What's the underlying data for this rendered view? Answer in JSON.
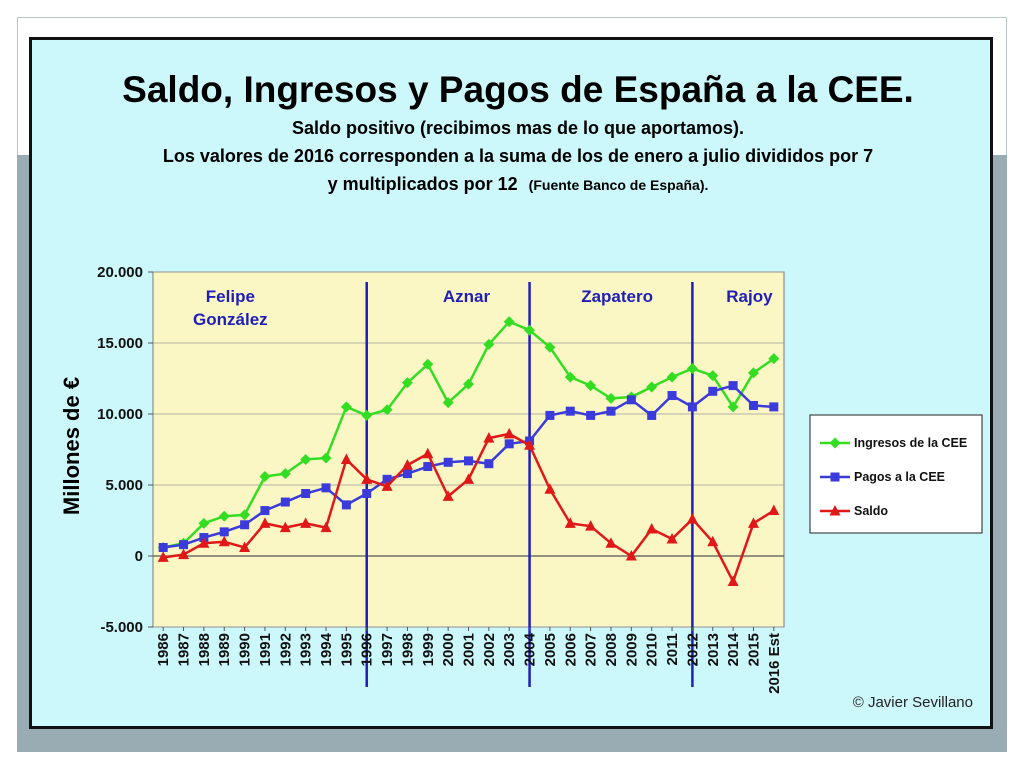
{
  "chart_data": {
    "type": "line",
    "title": "Saldo, Ingresos  y Pagos de España a la CEE.",
    "subtitle_lines": [
      "Saldo positivo (recibimos mas de lo que aportamos).",
      "Los valores de 2016 corresponden a la suma de los de enero a julio divididos por 7"
    ],
    "subtitle_line3_main": "y multiplicados por 12",
    "subtitle_line3_small": "(Fuente Banco de España).",
    "ylabel": "Millones de €",
    "xlabel": "",
    "ylim": [
      -5000,
      20000
    ],
    "yticks": [
      -5000,
      0,
      5000,
      10000,
      15000,
      20000
    ],
    "ytick_labels": [
      "-5.000",
      "0",
      "5.000",
      "10.000",
      "15.000",
      "20.000"
    ],
    "grid": "horizontal",
    "legend_position": "right",
    "categories": [
      "1986",
      "1987",
      "1988",
      "1989",
      "1990",
      "1991",
      "1992",
      "1993",
      "1994",
      "1995",
      "1996",
      "1997",
      "1998",
      "1999",
      "2000",
      "2001",
      "2002",
      "2003",
      "2004",
      "2005",
      "2006",
      "2007",
      "2008",
      "2009",
      "2010",
      "2011",
      "2012",
      "2013",
      "2014",
      "2015",
      "2016 Est"
    ],
    "series": [
      {
        "name": "Ingresos de la CEE",
        "color": "#33dd22",
        "marker": "diamond",
        "values": [
          600,
          900,
          2300,
          2800,
          2900,
          5600,
          5800,
          6800,
          6900,
          10500,
          9900,
          10300,
          12200,
          13500,
          10800,
          12100,
          14900,
          16500,
          15900,
          14700,
          12600,
          12000,
          11100,
          11200,
          11900,
          12600,
          13200,
          12700,
          10500,
          12900,
          13900
        ]
      },
      {
        "name": "Pagos a la CEE",
        "color": "#3b3bdb",
        "marker": "square",
        "values": [
          600,
          800,
          1300,
          1700,
          2200,
          3200,
          3800,
          4400,
          4800,
          3600,
          4400,
          5400,
          5800,
          6300,
          6600,
          6700,
          6500,
          7900,
          8100,
          9900,
          10200,
          9900,
          10200,
          11000,
          9900,
          11300,
          10500,
          11600,
          12000,
          10600,
          10500
        ]
      },
      {
        "name": "Saldo",
        "color": "#e01818",
        "marker": "triangle",
        "values": [
          -100,
          100,
          900,
          1000,
          600,
          2300,
          2000,
          2300,
          2000,
          6800,
          5400,
          4900,
          6400,
          7200,
          4200,
          5400,
          8300,
          8600,
          7800,
          4700,
          2300,
          2100,
          900,
          0,
          1900,
          1200,
          2600,
          1000,
          -1800,
          2300,
          3200
        ]
      }
    ],
    "period_dividers": [
      {
        "x": 10,
        "label": "1996"
      },
      {
        "x": 18,
        "label": "2004"
      },
      {
        "x": 26,
        "label": "2012"
      }
    ],
    "period_labels": [
      {
        "lines": [
          "Felipe",
          "González"
        ],
        "category": 3.3
      },
      {
        "lines": [
          "Aznar"
        ],
        "category": 14.9
      },
      {
        "lines": [
          "Zapatero"
        ],
        "category": 22.3
      },
      {
        "lines": [
          "Rajoy"
        ],
        "category": 28.8
      }
    ],
    "divider_color": "#1f1fb8",
    "plot_background": "#fbf7c5",
    "credit": "© Javier Sevillano"
  }
}
